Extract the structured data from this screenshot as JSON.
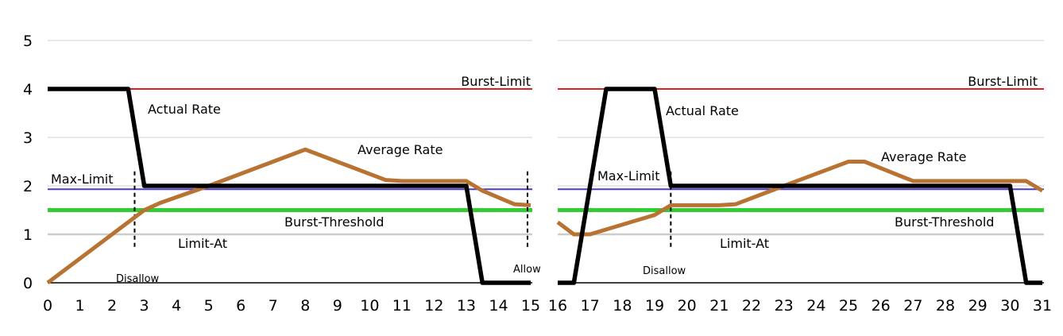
{
  "chart_data": [
    {
      "type": "line",
      "xlim": [
        0,
        15
      ],
      "ylim": [
        0,
        5
      ],
      "x_ticks": [
        "0",
        "1",
        "2",
        "3",
        "4",
        "5",
        "6",
        "7",
        "8",
        "9",
        "10",
        "11",
        "12",
        "13",
        "14",
        "15"
      ],
      "y_ticks": [
        "0",
        "1",
        "2",
        "3",
        "4",
        "5"
      ],
      "grid": true,
      "series": [
        {
          "name": "Actual Rate",
          "color": "#000000",
          "x": [
            0,
            2.5,
            3,
            13,
            13.5,
            15
          ],
          "y": [
            4,
            4,
            2,
            2,
            0,
            0
          ]
        },
        {
          "name": "Average Rate",
          "color": "#b87333",
          "x": [
            0,
            3,
            3.5,
            5,
            8,
            10.5,
            11,
            12,
            13,
            13.5,
            14.5,
            15
          ],
          "y": [
            0,
            1.5,
            1.65,
            2,
            2.75,
            2.12,
            2.1,
            2.1,
            2.1,
            1.9,
            1.62,
            1.6
          ]
        }
      ],
      "levels": [
        {
          "name": "Burst-Limit",
          "value": 4,
          "color": "#e02020"
        },
        {
          "name": "Max-Limit",
          "value": 1.93,
          "color": "#4a3cc8"
        },
        {
          "name": "Burst-Threshold",
          "value": 1.5,
          "color": "#33cc33"
        },
        {
          "name": "Limit-At",
          "value": 1,
          "color": "#cccccc"
        }
      ],
      "markers": [
        {
          "x": 2.7,
          "label": "Disallow"
        },
        {
          "x": 14.9,
          "label": "Allow"
        }
      ]
    },
    {
      "type": "line",
      "xlim": [
        16,
        31
      ],
      "ylim": [
        0,
        5
      ],
      "x_ticks": [
        "16",
        "17",
        "18",
        "19",
        "20",
        "21",
        "22",
        "23",
        "24",
        "25",
        "26",
        "27",
        "28",
        "29",
        "30",
        "31"
      ],
      "grid": true,
      "series": [
        {
          "name": "Actual Rate",
          "color": "#000000",
          "x": [
            16,
            16.5,
            17.5,
            19,
            19.5,
            30,
            30.5,
            31
          ],
          "y": [
            0,
            0,
            4,
            4,
            2,
            2,
            0,
            0
          ]
        },
        {
          "name": "Average Rate",
          "color": "#b87333",
          "x": [
            16,
            16.5,
            17,
            19,
            19.5,
            21,
            21.5,
            23,
            25,
            25.5,
            27,
            30.5,
            31
          ],
          "y": [
            1.25,
            1,
            1,
            1.4,
            1.6,
            1.6,
            1.62,
            2,
            2.5,
            2.5,
            2.1,
            2.1,
            1.9
          ]
        }
      ],
      "levels": [
        {
          "name": "Burst-Limit",
          "value": 4,
          "color": "#e02020"
        },
        {
          "name": "Max-Limit",
          "value": 1.93,
          "color": "#4a3cc8"
        },
        {
          "name": "Burst-Threshold",
          "value": 1.5,
          "color": "#33cc33"
        },
        {
          "name": "Limit-At",
          "value": 1,
          "color": "#cccccc"
        }
      ],
      "markers": [
        {
          "x": 19.5,
          "label": "Disallow"
        }
      ]
    }
  ]
}
